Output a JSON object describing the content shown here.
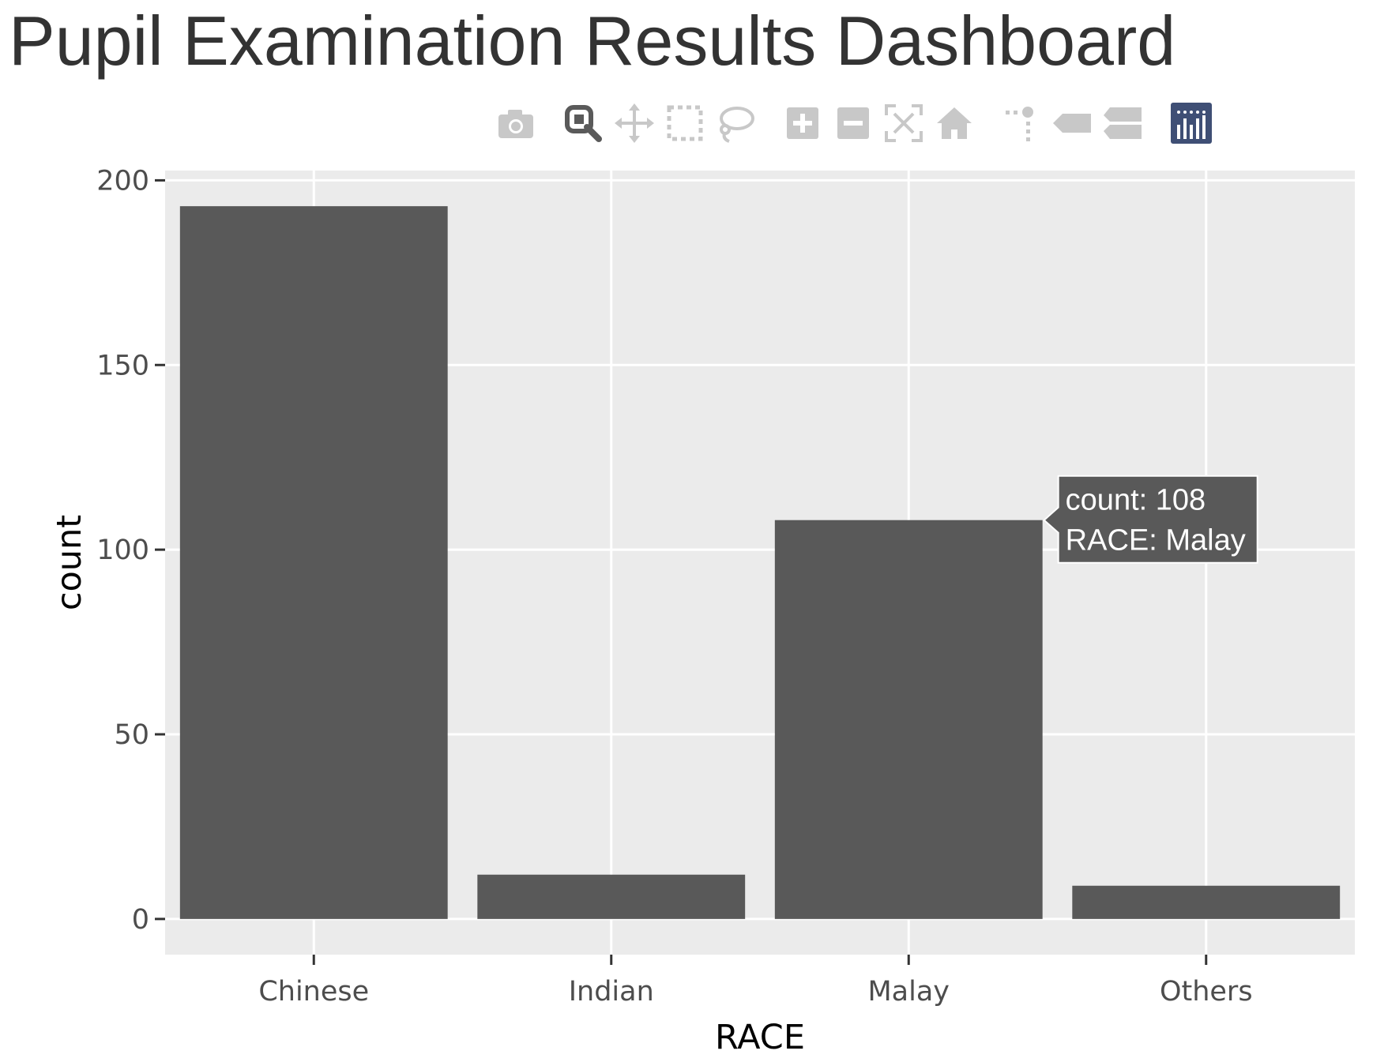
{
  "title": "Pupil Examination Results Dashboard",
  "modebar": {
    "buttons": [
      {
        "name": "camera-icon",
        "active": false
      },
      {
        "name": "zoom-icon",
        "active": true
      },
      {
        "name": "pan-icon",
        "active": false
      },
      {
        "name": "box-select-icon",
        "active": false
      },
      {
        "name": "lasso-select-icon",
        "active": false
      },
      {
        "name": "zoom-in-icon",
        "active": false
      },
      {
        "name": "zoom-out-icon",
        "active": false
      },
      {
        "name": "autoscale-icon",
        "active": false
      },
      {
        "name": "reset-axes-icon",
        "active": false
      },
      {
        "name": "spike-lines-icon",
        "active": false
      },
      {
        "name": "hover-closest-icon",
        "active": false
      },
      {
        "name": "hover-compare-icon",
        "active": false
      },
      {
        "name": "plotly-logo-icon",
        "active": false
      }
    ],
    "icon_color": "#c8c8c8",
    "active_color": "#5a5a5a",
    "logo_color": "#3f4f75"
  },
  "chart_data": {
    "type": "bar",
    "categories": [
      "Chinese",
      "Indian",
      "Malay",
      "Others"
    ],
    "values": [
      193,
      12,
      108,
      9
    ],
    "xlabel": "RACE",
    "ylabel": "count",
    "ylim": [
      -9.65,
      202.65
    ],
    "yticks": [
      0,
      50,
      100,
      150,
      200
    ],
    "ytick_labels": [
      "0",
      "50",
      "100",
      "150",
      "200"
    ],
    "grid": true,
    "bar_color": "#595959",
    "panel_color": "#ebebeb",
    "grid_color": "#ffffff",
    "hover": {
      "category_index": 2,
      "lines": [
        "count: 108",
        "RACE: Malay"
      ]
    }
  }
}
